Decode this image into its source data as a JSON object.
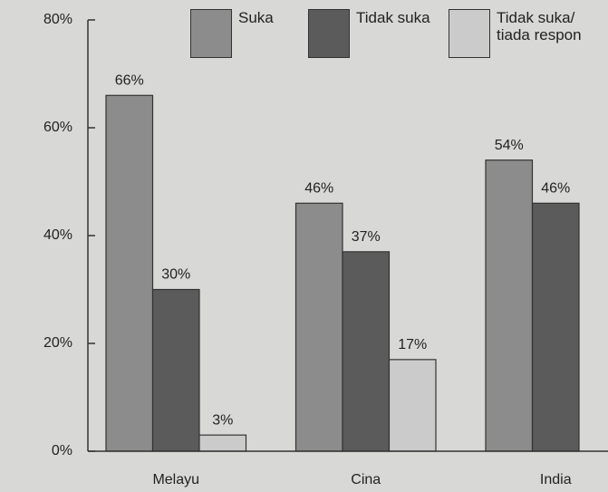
{
  "chart_data": {
    "type": "bar",
    "categories": [
      "Melayu",
      "Cina",
      "India"
    ],
    "series": [
      {
        "name": "Suka",
        "color": "#8c8c8c",
        "values": [
          66,
          46,
          54
        ],
        "value_labels": [
          "66%",
          "46%",
          "54%"
        ]
      },
      {
        "name": "Tidak suka",
        "color": "#5b5b5b",
        "values": [
          30,
          37,
          46
        ],
        "value_labels": [
          "30%",
          "37%",
          "46%"
        ]
      },
      {
        "name": "Tidak suka/ tiada respon",
        "color": "#cbcbcb",
        "values": [
          3,
          17,
          null
        ],
        "value_labels": [
          "3%",
          "17%",
          null
        ]
      }
    ],
    "ylim": [
      0,
      80
    ],
    "yticks": [
      {
        "value": 0,
        "label": "0%"
      },
      {
        "value": 20,
        "label": "20%"
      },
      {
        "value": 40,
        "label": "40%"
      },
      {
        "value": 60,
        "label": "60%"
      },
      {
        "value": 80,
        "label": "80%"
      }
    ],
    "legend": "top-right"
  }
}
